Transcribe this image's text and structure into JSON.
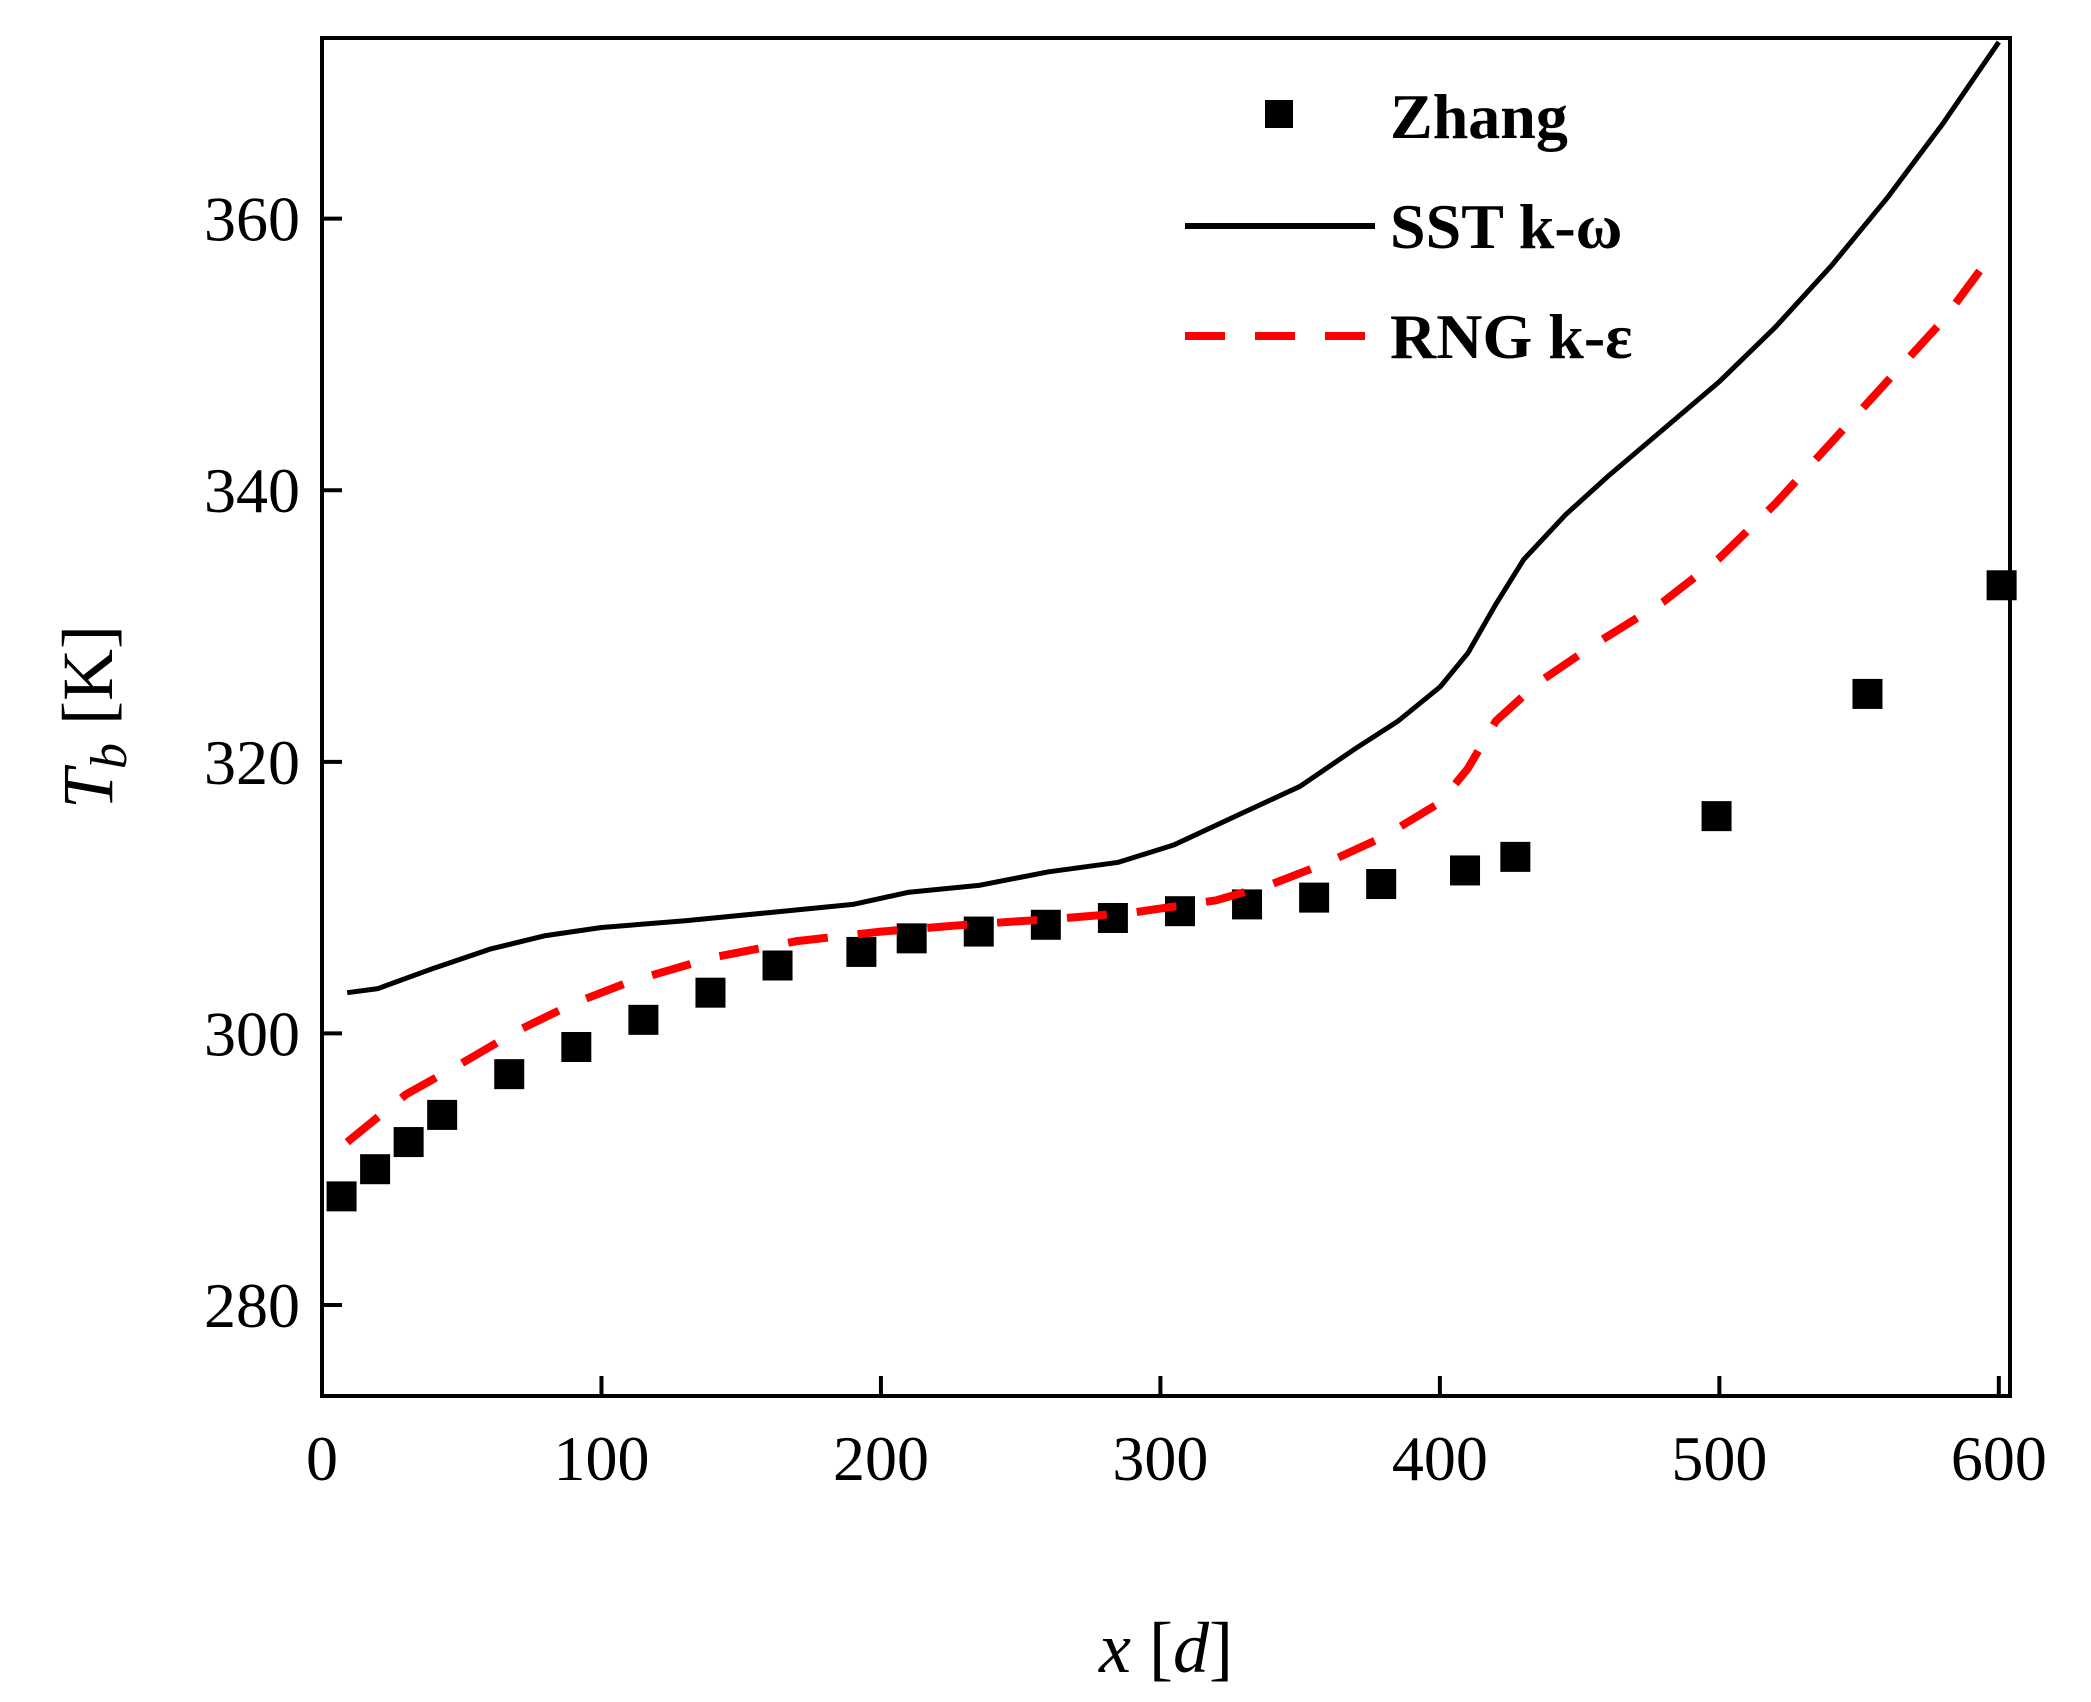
{
  "chart_data": {
    "type": "line",
    "title": "",
    "xlabel": {
      "var": "x",
      "unit": "d"
    },
    "ylabel": {
      "var": "T",
      "sub": "b",
      "unit": "K"
    },
    "xlim": [
      0,
      604
    ],
    "ylim": [
      273.3,
      373.3
    ],
    "xticks": [
      0,
      100,
      200,
      300,
      400,
      500,
      600
    ],
    "yticks": [
      280,
      300,
      320,
      340,
      360
    ],
    "grid": false,
    "legend_position": "top-right",
    "series": [
      {
        "name": "Zhang",
        "kind": "scatter",
        "marker": "square",
        "color": "#000000",
        "x": [
          7,
          19,
          31,
          43,
          67,
          91,
          115,
          139,
          163,
          193,
          211,
          235,
          259,
          283,
          307,
          331,
          355,
          379,
          409,
          427,
          499,
          553,
          601
        ],
        "y": [
          288,
          290,
          292,
          294,
          297,
          299,
          301,
          303,
          305,
          306,
          307,
          307.5,
          308,
          308.5,
          309,
          309.5,
          310,
          311,
          312,
          313,
          316,
          325,
          333
        ]
      },
      {
        "name": "SST k-ω",
        "kind": "line",
        "dash": "solid",
        "color": "#000000",
        "x": [
          9,
          20,
          40,
          60,
          80,
          100,
          130,
          160,
          190,
          210,
          235,
          260,
          285,
          305,
          330,
          350,
          370,
          385,
          400,
          410,
          420,
          430,
          445,
          460,
          480,
          500,
          520,
          540,
          560,
          580,
          600
        ],
        "y": [
          303,
          303.3,
          304.8,
          306.2,
          307.2,
          307.8,
          308.3,
          308.9,
          309.5,
          310.4,
          310.9,
          311.9,
          312.6,
          313.9,
          316.3,
          318.2,
          321,
          323,
          325.5,
          328,
          331.6,
          334.9,
          338.2,
          341,
          344.5,
          348,
          352,
          356.5,
          361.5,
          367,
          373
        ]
      },
      {
        "name": "RNG k-ε",
        "kind": "line",
        "dash": "dashed",
        "color": "#ff0000",
        "x": [
          9,
          30,
          50,
          70,
          90,
          110,
          140,
          170,
          200,
          230,
          260,
          290,
          320,
          340,
          360,
          380,
          400,
          410,
          420,
          435,
          455,
          480,
          500,
          520,
          540,
          560,
          580,
          598
        ],
        "y": [
          292,
          295.5,
          297.8,
          300.2,
          302.2,
          303.8,
          305.6,
          306.8,
          307.5,
          308,
          308.4,
          308.9,
          309.8,
          311,
          312.6,
          314.5,
          317,
          319.5,
          323,
          325.8,
          328.6,
          331.8,
          335,
          339,
          343.5,
          348,
          352.5,
          357.5
        ]
      }
    ]
  }
}
